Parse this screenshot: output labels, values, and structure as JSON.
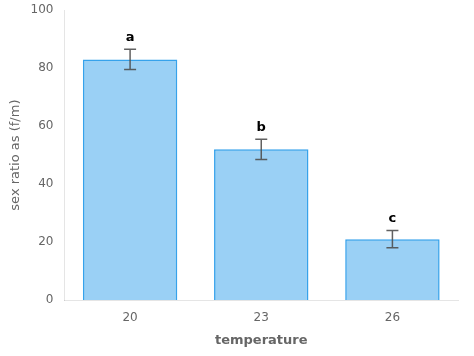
{
  "chart_data": {
    "type": "bar",
    "categories": [
      "20",
      "23",
      "26"
    ],
    "values": [
      83,
      52,
      21
    ],
    "errors": [
      3.5,
      3.5,
      3.0
    ],
    "annotations": [
      "a",
      "b",
      "c"
    ],
    "xlabel": "temperature",
    "ylabel": "sex ratio as (f/m)",
    "ylim": [
      0,
      100
    ],
    "yticks": [
      0,
      20,
      40,
      60,
      80,
      100
    ],
    "grid": false
  }
}
